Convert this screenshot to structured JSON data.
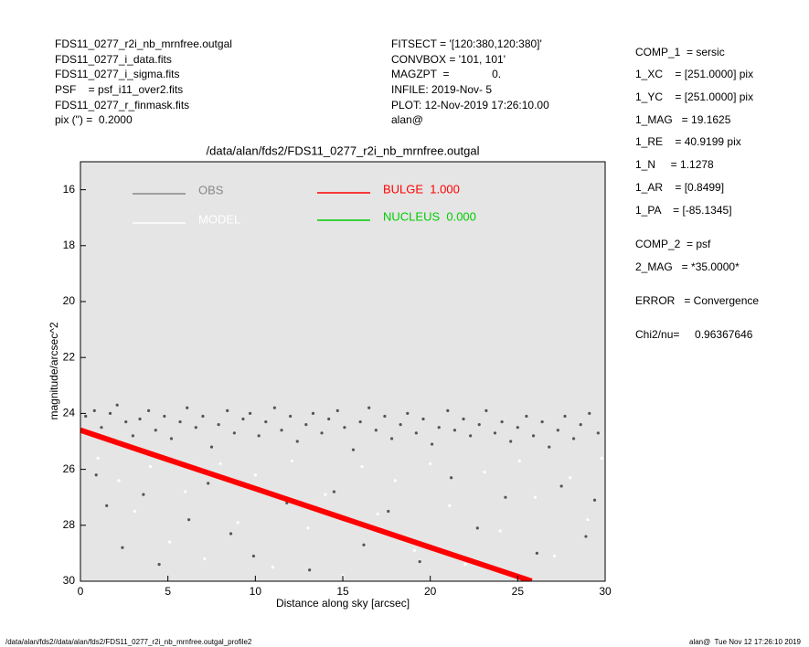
{
  "header": {
    "left": [
      "FDS11_0277_r2i_nb_mrnfree.outgal",
      "FDS11_0277_i_data.fits",
      "FDS11_0277_i_sigma.fits",
      "PSF    = psf_i11_over2.fits",
      "FDS11_0277_r_finmask.fits",
      "pix (\") =  0.2000"
    ],
    "middle": [
      "FITSECT = '[120:380,120:380]'",
      "CONVBOX = '101, 101'",
      "MAGZPT  =              0.",
      "INFILE: 2019-Nov- 5",
      "PLOT: 12-Nov-2019 17:26:10.00",
      "alan@"
    ],
    "right": [
      "COMP_1  = sersic",
      "1_XC    = [251.0000] pix",
      "1_YC    = [251.0000] pix",
      "1_MAG   = 19.1625",
      "1_RE    = 40.9199 pix",
      "1_N     = 1.1278",
      "1_AR    = [0.8499]",
      "1_PA    = [-85.1345]",
      "COMP_2  = psf",
      "2_MAG   = *35.0000*",
      "ERROR   = Convergence",
      "Chi2/nu=     0.96367646"
    ]
  },
  "footer": {
    "left": "/data/alan/fds2//data/alan/fds2/FDS11_0277_r2i_nb_mrnfree.outgal_profile2",
    "right": "alan@  Tue Nov 12 17:26:10 2019"
  },
  "chart_data": {
    "type": "scatter",
    "title": "/data/alan/fds2/FDS11_0277_r2i_nb_mrnfree.outgal",
    "x_label": "Distance along sky [arcsec]",
    "y_label": "magnitude/arcsec^2",
    "xlim": [
      0,
      30
    ],
    "xticks": [
      0,
      5,
      10,
      15,
      20,
      25,
      30
    ],
    "ylim": [
      15,
      30
    ],
    "yticks": [
      16,
      18,
      20,
      22,
      24,
      26,
      28,
      30
    ],
    "y_inverted": true,
    "background": "#e5e5e5",
    "series": [
      {
        "name": "OBS",
        "color": "#555555",
        "mode": "points",
        "x": [
          0.3,
          0.8,
          1.2,
          1.7,
          2.1,
          2.6,
          3.0,
          3.4,
          3.9,
          4.3,
          4.8,
          5.2,
          5.7,
          6.1,
          6.6,
          7.0,
          7.5,
          7.9,
          8.4,
          8.8,
          9.3,
          9.7,
          10.2,
          10.6,
          11.1,
          11.5,
          12.0,
          12.4,
          12.9,
          13.3,
          13.8,
          14.2,
          14.7,
          15.1,
          15.6,
          16.0,
          16.5,
          16.9,
          17.4,
          17.8,
          18.3,
          18.7,
          19.2,
          19.6,
          20.1,
          20.5,
          21.0,
          21.4,
          21.9,
          22.3,
          22.8,
          23.2,
          23.7,
          24.1,
          24.6,
          25.0,
          25.5,
          25.9,
          26.4,
          26.8,
          27.3,
          27.7,
          28.2,
          28.6,
          29.1,
          29.6,
          0.9,
          1.5,
          2.4,
          3.6,
          4.5,
          6.2,
          7.3,
          8.6,
          9.9,
          11.8,
          13.1,
          14.5,
          16.2,
          17.6,
          19.4,
          21.2,
          22.7,
          24.3,
          26.1,
          27.5,
          28.9,
          29.4
        ],
        "values": [
          24.1,
          23.9,
          24.5,
          24.0,
          23.7,
          24.3,
          24.8,
          24.2,
          23.9,
          24.6,
          24.1,
          24.9,
          24.3,
          23.8,
          24.5,
          24.1,
          25.2,
          24.4,
          23.9,
          24.7,
          24.2,
          24.0,
          24.8,
          24.3,
          23.8,
          24.6,
          24.1,
          25.0,
          24.4,
          24.0,
          24.7,
          24.2,
          23.9,
          24.5,
          25.3,
          24.3,
          23.8,
          24.6,
          24.1,
          24.9,
          24.4,
          24.0,
          24.7,
          24.2,
          25.1,
          24.5,
          23.9,
          24.6,
          24.2,
          24.8,
          24.4,
          23.9,
          24.7,
          24.3,
          25.0,
          24.5,
          24.1,
          24.8,
          24.3,
          25.2,
          24.6,
          24.1,
          24.9,
          24.4,
          24.0,
          24.7,
          26.2,
          27.3,
          28.8,
          26.9,
          29.4,
          27.8,
          26.5,
          28.3,
          29.1,
          27.2,
          29.6,
          26.8,
          28.7,
          27.5,
          29.3,
          26.3,
          28.1,
          27.0,
          29.0,
          26.6,
          28.4,
          27.1
        ]
      },
      {
        "name": "MODEL",
        "color": "#ffffff",
        "mode": "points",
        "x": [
          1.0,
          2.2,
          3.1,
          4.0,
          5.1,
          6.0,
          7.1,
          8.0,
          9.0,
          10.0,
          11.0,
          12.1,
          13.0,
          14.0,
          15.0,
          16.1,
          17.0,
          18.0,
          19.1,
          20.0,
          21.1,
          22.0,
          23.1,
          24.0,
          25.1,
          26.0,
          27.1,
          28.0,
          29.0,
          29.8
        ],
        "values": [
          25.6,
          26.4,
          27.5,
          25.9,
          28.6,
          26.8,
          29.2,
          25.8,
          27.9,
          26.2,
          29.5,
          25.7,
          28.1,
          26.9,
          29.8,
          25.9,
          27.6,
          26.4,
          28.9,
          25.8,
          27.3,
          29.4,
          26.1,
          28.2,
          25.7,
          27.0,
          29.1,
          26.3,
          27.8,
          25.6
        ]
      },
      {
        "name": "BULGE  1.000",
        "color": "#ff0000",
        "mode": "line",
        "x": [
          0,
          5,
          10,
          15,
          20,
          25,
          25.8
        ],
        "values": [
          24.6,
          25.65,
          26.69,
          27.74,
          28.79,
          29.83,
          30
        ]
      },
      {
        "name": "NUCLEUS  0.000",
        "color": "#00cc00",
        "mode": "line",
        "x": [],
        "values": []
      }
    ]
  }
}
